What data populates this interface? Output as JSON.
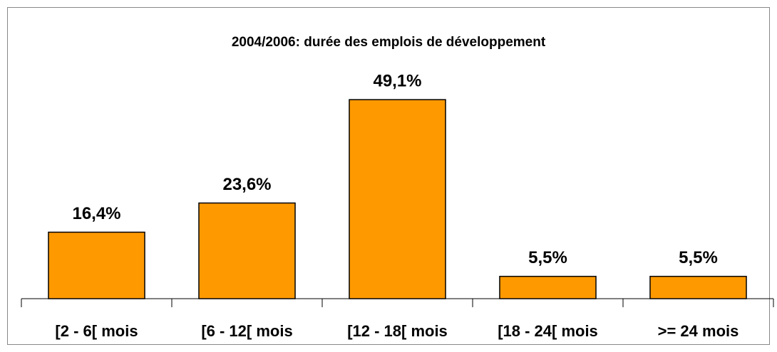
{
  "chart_data": {
    "type": "bar",
    "title": "2004/2006: durée des emplois de développement",
    "categories": [
      "[2 - 6[ mois",
      "[6 - 12[ mois",
      "[12 - 18[ mois",
      "[18 - 24[ mois",
      ">= 24 mois"
    ],
    "values": [
      16.4,
      23.6,
      49.1,
      5.5,
      5.5
    ],
    "value_labels": [
      "16,4%",
      "23,6%",
      "49,1%",
      "5,5%",
      "5,5%"
    ],
    "color": "#ff9900"
  }
}
